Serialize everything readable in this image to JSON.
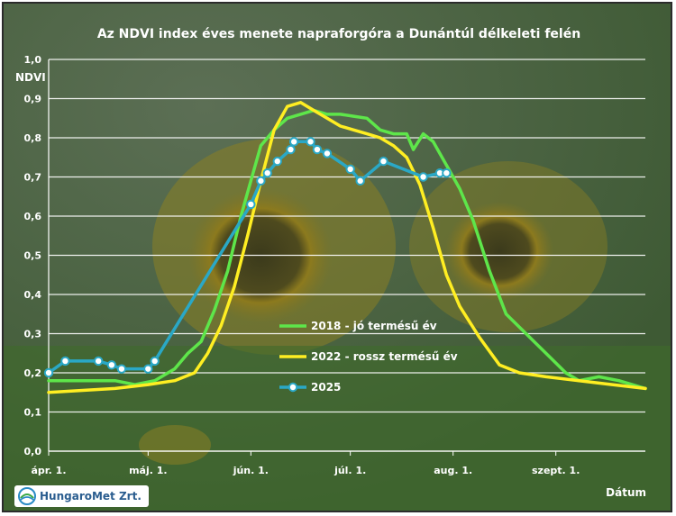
{
  "chart_data": {
    "type": "line",
    "title": "Az NDVI index éves menete napraforgóra a Dunántúl délkeleti felén",
    "ylabel": "NDVI",
    "xlabel": "Dátum",
    "ylim": [
      0.0,
      1.0
    ],
    "yticks": [
      "0,0",
      "0,1",
      "0,2",
      "0,3",
      "0,4",
      "0,5",
      "0,6",
      "0,7",
      "0,8",
      "0,9",
      "1,0"
    ],
    "xticks": [
      {
        "label": "ápr. 1.",
        "day": 0
      },
      {
        "label": "máj. 1.",
        "day": 30
      },
      {
        "label": "jún. 1.",
        "day": 61
      },
      {
        "label": "júl. 1.",
        "day": 91
      },
      {
        "label": "aug. 1.",
        "day": 122
      },
      {
        "label": "szept. 1.",
        "day": 153
      }
    ],
    "xlim": [
      0,
      180
    ],
    "grid": true,
    "legend_position": "bottom-center",
    "series": [
      {
        "name": "2018 - jó termésű év",
        "color": "#5ee64a",
        "markers": false,
        "points": [
          [
            0,
            0.18
          ],
          [
            20,
            0.18
          ],
          [
            26,
            0.17
          ],
          [
            32,
            0.18
          ],
          [
            38,
            0.21
          ],
          [
            42,
            0.25
          ],
          [
            46,
            0.28
          ],
          [
            50,
            0.36
          ],
          [
            54,
            0.46
          ],
          [
            58,
            0.6
          ],
          [
            62,
            0.72
          ],
          [
            64,
            0.78
          ],
          [
            68,
            0.82
          ],
          [
            72,
            0.85
          ],
          [
            76,
            0.86
          ],
          [
            80,
            0.87
          ],
          [
            84,
            0.86
          ],
          [
            88,
            0.86
          ],
          [
            92,
            0.855
          ],
          [
            96,
            0.85
          ],
          [
            100,
            0.82
          ],
          [
            104,
            0.81
          ],
          [
            108,
            0.81
          ],
          [
            110,
            0.77
          ],
          [
            113,
            0.81
          ],
          [
            116,
            0.79
          ],
          [
            120,
            0.73
          ],
          [
            124,
            0.67
          ],
          [
            128,
            0.59
          ],
          [
            133,
            0.46
          ],
          [
            138,
            0.35
          ],
          [
            144,
            0.3
          ],
          [
            150,
            0.25
          ],
          [
            156,
            0.2
          ],
          [
            160,
            0.18
          ],
          [
            166,
            0.19
          ],
          [
            172,
            0.18
          ],
          [
            180,
            0.16
          ]
        ]
      },
      {
        "name": "2022 - rossz termésű év",
        "color": "#ffee22",
        "markers": false,
        "points": [
          [
            0,
            0.15
          ],
          [
            20,
            0.16
          ],
          [
            30,
            0.17
          ],
          [
            38,
            0.18
          ],
          [
            44,
            0.2
          ],
          [
            48,
            0.25
          ],
          [
            52,
            0.32
          ],
          [
            56,
            0.42
          ],
          [
            60,
            0.55
          ],
          [
            64,
            0.69
          ],
          [
            68,
            0.82
          ],
          [
            72,
            0.88
          ],
          [
            76,
            0.89
          ],
          [
            80,
            0.87
          ],
          [
            84,
            0.85
          ],
          [
            88,
            0.83
          ],
          [
            92,
            0.82
          ],
          [
            96,
            0.81
          ],
          [
            100,
            0.8
          ],
          [
            104,
            0.78
          ],
          [
            108,
            0.75
          ],
          [
            112,
            0.68
          ],
          [
            116,
            0.57
          ],
          [
            120,
            0.45
          ],
          [
            124,
            0.37
          ],
          [
            130,
            0.29
          ],
          [
            136,
            0.22
          ],
          [
            142,
            0.2
          ],
          [
            150,
            0.19
          ],
          [
            160,
            0.18
          ],
          [
            170,
            0.17
          ],
          [
            180,
            0.16
          ]
        ]
      },
      {
        "name": "2025",
        "color": "#2aa8c6",
        "markers": true,
        "points": [
          [
            0,
            0.2
          ],
          [
            5,
            0.23
          ],
          [
            15,
            0.23
          ],
          [
            19,
            0.22
          ],
          [
            22,
            0.21
          ],
          [
            30,
            0.21
          ],
          [
            32,
            0.23
          ],
          [
            61,
            0.63
          ],
          [
            64,
            0.69
          ],
          [
            66,
            0.71
          ],
          [
            69,
            0.74
          ],
          [
            73,
            0.77
          ],
          [
            74,
            0.79
          ],
          [
            79,
            0.79
          ],
          [
            81,
            0.77
          ],
          [
            84,
            0.76
          ],
          [
            91,
            0.72
          ],
          [
            94,
            0.69
          ],
          [
            101,
            0.74
          ],
          [
            113,
            0.7
          ],
          [
            118,
            0.71
          ],
          [
            120,
            0.71
          ]
        ]
      }
    ]
  },
  "logo": {
    "text": "HungaroMet Zrt."
  }
}
